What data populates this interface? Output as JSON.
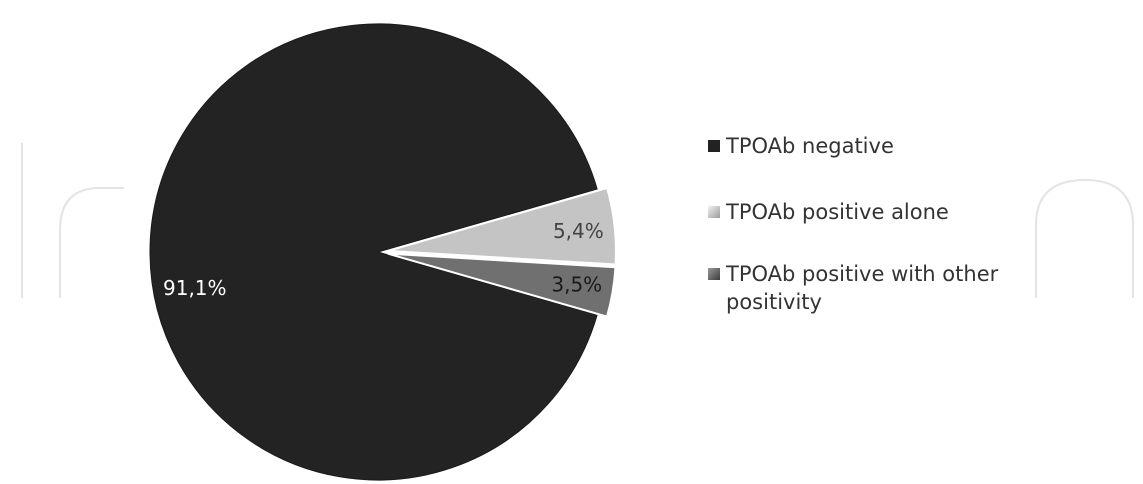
{
  "chart_data": {
    "type": "pie",
    "categories": [
      "TPOAb negative",
      "TPOAb positive alone",
      "TPOAb positive with other positivity"
    ],
    "values": [
      91.1,
      5.4,
      3.5
    ],
    "data_labels": [
      "91,1%",
      "5,4%",
      "3,5%"
    ],
    "legend_placement": "right",
    "colors": [
      "#222222",
      "#bcbcbc",
      "#6a6a6a"
    ]
  },
  "legend": {
    "items": [
      {
        "label": "TPOAb negative",
        "color": "#222222"
      },
      {
        "label": "TPOAb positive alone",
        "color": "#bcbcbc"
      },
      {
        "label": "TPOAb positive with other positivity",
        "color": "#6a6a6a"
      }
    ]
  }
}
